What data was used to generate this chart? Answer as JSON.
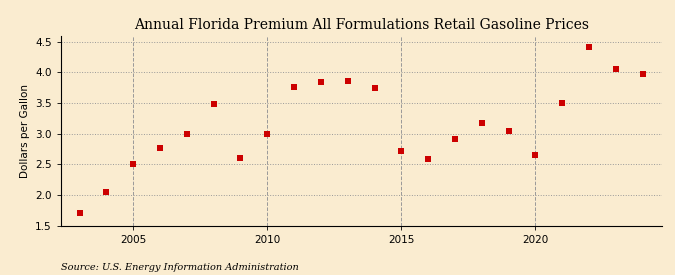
{
  "title": "Annual Florida Premium All Formulations Retail Gasoline Prices",
  "ylabel": "Dollars per Gallon",
  "source": "Source: U.S. Energy Information Administration",
  "years": [
    2003,
    2004,
    2005,
    2006,
    2007,
    2008,
    2009,
    2010,
    2011,
    2012,
    2013,
    2014,
    2015,
    2016,
    2017,
    2018,
    2019,
    2020,
    2021,
    2022,
    2023,
    2024
  ],
  "values": [
    1.7,
    2.05,
    2.5,
    2.77,
    3.0,
    3.49,
    2.6,
    3.0,
    3.76,
    3.84,
    3.86,
    3.74,
    2.72,
    2.59,
    2.91,
    3.18,
    3.05,
    2.65,
    3.5,
    4.41,
    4.06,
    3.98
  ],
  "marker_color": "#cc0000",
  "marker": "s",
  "marker_size": 4,
  "background_color": "#faecd0",
  "grid_color": "#999999",
  "ylim": [
    1.5,
    4.6
  ],
  "yticks": [
    1.5,
    2.0,
    2.5,
    3.0,
    3.5,
    4.0,
    4.5
  ],
  "xlim": [
    2002.3,
    2024.7
  ],
  "xticks": [
    2005,
    2010,
    2015,
    2020
  ],
  "vline_years": [
    2005,
    2010,
    2015,
    2020
  ],
  "title_fontsize": 10,
  "label_fontsize": 7.5,
  "tick_fontsize": 7.5,
  "source_fontsize": 7
}
